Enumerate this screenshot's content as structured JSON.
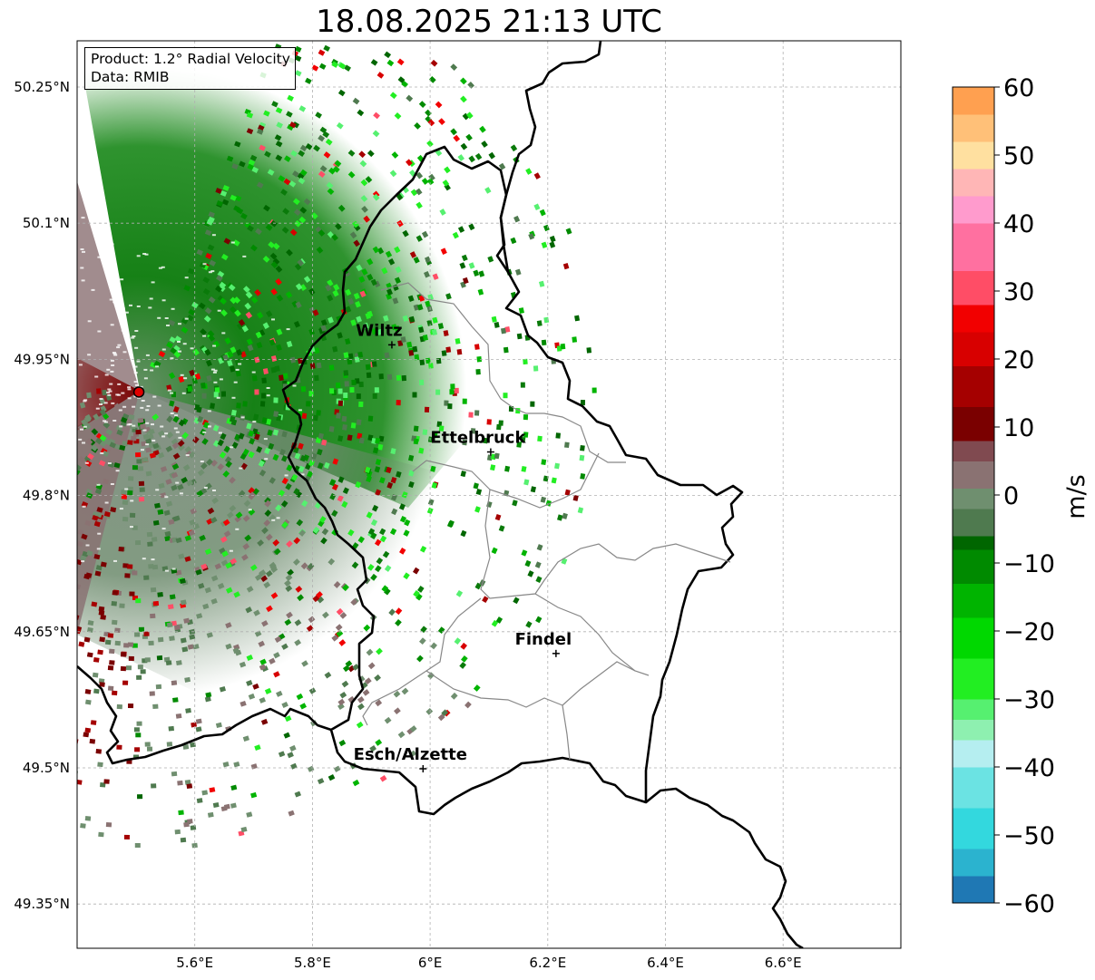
{
  "title": "18.08.2025 21:13 UTC",
  "info": {
    "product": "Product: 1.2° Radial Velocity",
    "source": "Data: RMIB"
  },
  "map": {
    "lon_range": [
      5.4,
      6.8
    ],
    "lat_range": [
      49.3,
      50.3
    ],
    "lat_ticks": [
      {
        "value": 50.25,
        "label": "50.25°N"
      },
      {
        "value": 50.1,
        "label": "50.1°N"
      },
      {
        "value": 49.95,
        "label": "49.95°N"
      },
      {
        "value": 49.8,
        "label": "49.8°N"
      },
      {
        "value": 49.65,
        "label": "49.65°N"
      },
      {
        "value": 49.5,
        "label": "49.5°N"
      },
      {
        "value": 49.35,
        "label": "49.35°N"
      }
    ],
    "lon_ticks": [
      {
        "value": 5.6,
        "label": "5.6°E"
      },
      {
        "value": 5.8,
        "label": "5.8°E"
      },
      {
        "value": 6.0,
        "label": "6°E"
      },
      {
        "value": 6.2,
        "label": "6.2°E"
      },
      {
        "value": 6.4,
        "label": "6.4°E"
      },
      {
        "value": 6.6,
        "label": "6.6°E"
      }
    ],
    "radar_site": {
      "lon": 5.505,
      "lat": 49.914
    },
    "cities": [
      {
        "name": "Wiltz",
        "lon": 5.935,
        "lat": 49.966
      },
      {
        "name": "Ettelbruck",
        "lon": 6.103,
        "lat": 49.848
      },
      {
        "name": "Findel",
        "lon": 6.214,
        "lat": 49.626
      },
      {
        "name": "Esch/Alzette",
        "lon": 5.988,
        "lat": 49.499
      }
    ]
  },
  "colorbar": {
    "label": "m/s",
    "min": -60,
    "max": 60,
    "ticks": [
      {
        "value": 60,
        "label": "60"
      },
      {
        "value": 50,
        "label": "50"
      },
      {
        "value": 40,
        "label": "40"
      },
      {
        "value": 30,
        "label": "30"
      },
      {
        "value": 20,
        "label": "20"
      },
      {
        "value": 10,
        "label": "10"
      },
      {
        "value": 0,
        "label": "0"
      },
      {
        "value": -10,
        "label": "−10"
      },
      {
        "value": -20,
        "label": "−20"
      },
      {
        "value": -30,
        "label": "−30"
      },
      {
        "value": -40,
        "label": "−40"
      },
      {
        "value": -50,
        "label": "−50"
      },
      {
        "value": -60,
        "label": "−60"
      }
    ],
    "stops": [
      {
        "from": -60,
        "color": "#1f78b4"
      },
      {
        "from": -56,
        "color": "#2bb3cf"
      },
      {
        "from": -52,
        "color": "#33d8de"
      },
      {
        "from": -46,
        "color": "#6be3e3"
      },
      {
        "from": -40,
        "color": "#b5eef0"
      },
      {
        "from": -36,
        "color": "#8ef0b0"
      },
      {
        "from": -33,
        "color": "#56f070"
      },
      {
        "from": -30,
        "color": "#22ee22"
      },
      {
        "from": -24,
        "color": "#00d800"
      },
      {
        "from": -18,
        "color": "#00b400"
      },
      {
        "from": -13,
        "color": "#008a00"
      },
      {
        "from": -8,
        "color": "#006600"
      },
      {
        "from": -6,
        "color": "#4f7a4f"
      },
      {
        "from": -2,
        "color": "#6f8f6f"
      },
      {
        "from": 1,
        "color": "#8a7272"
      },
      {
        "from": 5,
        "color": "#804a50"
      },
      {
        "from": 8,
        "color": "#7a0000"
      },
      {
        "from": 13,
        "color": "#a50000"
      },
      {
        "from": 19,
        "color": "#d80000"
      },
      {
        "from": 24,
        "color": "#f20000"
      },
      {
        "from": 28,
        "color": "#ff4d66"
      },
      {
        "from": 33,
        "color": "#ff70a0"
      },
      {
        "from": 40,
        "color": "#ff9bcd"
      },
      {
        "from": 44,
        "color": "#ffb6b6"
      },
      {
        "from": 48,
        "color": "#ffe0a0"
      },
      {
        "from": 52,
        "color": "#ffc078"
      },
      {
        "from": 56,
        "color": "#ffa050"
      }
    ]
  }
}
